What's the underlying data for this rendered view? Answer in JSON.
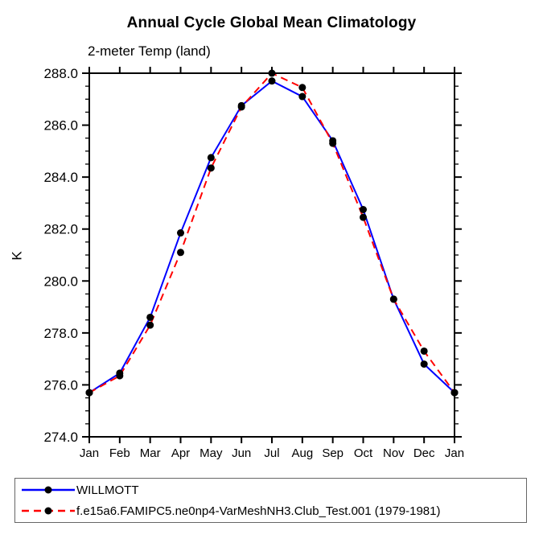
{
  "chart_data": {
    "type": "line",
    "title": "Annual Cycle Global Mean Climatology",
    "subtitle": "2-meter Temp (land)",
    "ylabel": "K",
    "x_labels": [
      "Jan",
      "Feb",
      "Mar",
      "Apr",
      "May",
      "Jun",
      "Jul",
      "Aug",
      "Sep",
      "Oct",
      "Nov",
      "Dec",
      "Jan"
    ],
    "ylim": [
      274.0,
      288.0
    ],
    "ytick_labels": [
      "274.0",
      "276.0",
      "278.0",
      "280.0",
      "282.0",
      "284.0",
      "286.0",
      "288.0"
    ],
    "ytick_step": 2.0,
    "minor_tick_step": 0.5,
    "grid": false,
    "legend_position": "bottom-left-box",
    "marker": {
      "shape": "circle",
      "color": "#000000"
    },
    "axis_color": "#000000",
    "series": [
      {
        "name": "WILLMOTT",
        "color": "#0000ff",
        "style": "solid",
        "values": [
          275.7,
          276.45,
          278.6,
          281.85,
          284.75,
          286.75,
          287.7,
          287.1,
          285.4,
          282.75,
          279.3,
          276.8,
          275.7
        ]
      },
      {
        "name": "f.e15a6.FAMIPC5.ne0np4-VarMeshNH3.Club_Test.001 (1979-1981)",
        "color": "#ff0000",
        "style": "dashed",
        "values": [
          275.7,
          276.35,
          278.3,
          281.1,
          284.35,
          286.7,
          288.0,
          287.45,
          285.3,
          282.45,
          279.3,
          277.3,
          275.7
        ]
      }
    ]
  }
}
